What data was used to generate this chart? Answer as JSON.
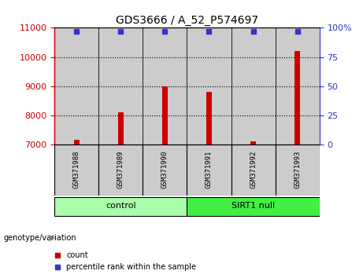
{
  "title": "GDS3666 / A_52_P574697",
  "samples": [
    "GSM371988",
    "GSM371989",
    "GSM371990",
    "GSM371991",
    "GSM371992",
    "GSM371993"
  ],
  "counts": [
    7150,
    8100,
    9000,
    8800,
    7100,
    10200
  ],
  "percentile_rank": 97,
  "ylim_left": [
    7000,
    11000
  ],
  "ylim_right": [
    0,
    100
  ],
  "left_ticks": [
    7000,
    8000,
    9000,
    10000,
    11000
  ],
  "right_ticks": [
    0,
    25,
    50,
    75,
    100
  ],
  "bar_color": "#cc0000",
  "dot_color": "#3333cc",
  "groups": [
    {
      "label": "control",
      "indices": [
        0,
        1,
        2
      ],
      "color": "#aaffaa"
    },
    {
      "label": "SIRT1 null",
      "indices": [
        3,
        4,
        5
      ],
      "color": "#44ee44"
    }
  ],
  "group_label": "genotype/variation",
  "legend_items": [
    {
      "label": "count",
      "color": "#cc0000"
    },
    {
      "label": "percentile rank within the sample",
      "color": "#3333cc"
    }
  ],
  "bg_color": "#ffffff",
  "sample_area_color": "#cccccc",
  "left_axis_color": "#cc0000",
  "right_axis_color": "#3333cc",
  "figsize": [
    4.61,
    3.54
  ],
  "dpi": 100
}
